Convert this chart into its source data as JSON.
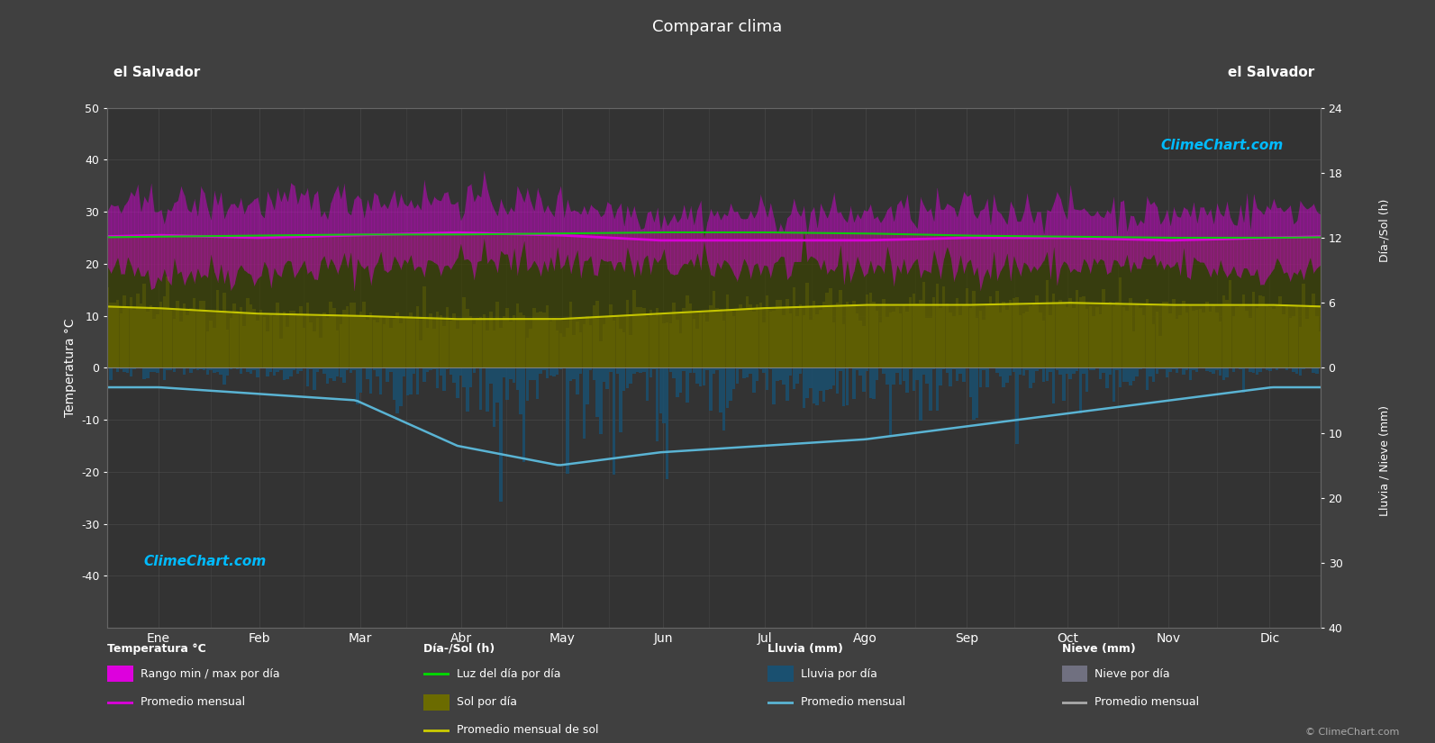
{
  "title": "Comparar clima",
  "left_label_top": "el Salvador",
  "right_label_top": "el Salvador",
  "ylabel_left": "Temperatura °C",
  "ylabel_right_top": "Día-/Sol (h)",
  "ylabel_right_bottom": "Lluvia / Nieve (mm)",
  "months": [
    "Ene",
    "Feb",
    "Mar",
    "Abr",
    "May",
    "Jun",
    "Jul",
    "Ago",
    "Sep",
    "Oct",
    "Nov",
    "Dic"
  ],
  "ylim_left": [
    -50,
    50
  ],
  "background_color": "#404040",
  "plot_bg_color": "#333333",
  "grid_color": "#555555",
  "temp_min_monthly": [
    19,
    19,
    20,
    21,
    21,
    20,
    20,
    20,
    20,
    20,
    20,
    19
  ],
  "temp_max_monthly": [
    31,
    31,
    32,
    32,
    31,
    29,
    29,
    29,
    30,
    30,
    29,
    30
  ],
  "temp_avg_monthly": [
    25.5,
    25.0,
    25.5,
    26.0,
    25.5,
    24.5,
    24.5,
    24.5,
    25.0,
    25.0,
    24.5,
    25.0
  ],
  "daylight_monthly": [
    12.1,
    12.2,
    12.3,
    12.3,
    12.4,
    12.5,
    12.5,
    12.4,
    12.2,
    12.1,
    12.0,
    12.0
  ],
  "sun_hours_monthly": [
    5.5,
    5.0,
    4.8,
    4.5,
    4.5,
    5.0,
    5.5,
    5.8,
    5.8,
    6.0,
    5.8,
    5.8
  ],
  "rain_avg_monthly": [
    3,
    4,
    5,
    12,
    15,
    13,
    12,
    11,
    9,
    7,
    5,
    3
  ],
  "temp_min_noise": 1.8,
  "temp_max_noise": 1.8,
  "magenta_color": "#dd00dd",
  "green_color": "#00dd00",
  "yellow_color": "#cccc00",
  "olive_color": "#6b6b00",
  "blue_fill_color": "#1a5070",
  "blue_line_color": "#5ab4d4",
  "rain_bar_color": "#1a5070",
  "snow_bar_color": "#707080",
  "logo_text": "ClimeChart.com",
  "copyright_text": "© ClimeChart.com",
  "right_ticks_top": [
    0,
    6,
    12,
    18,
    24
  ],
  "right_ticks_bottom": [
    0,
    10,
    20,
    30,
    40
  ]
}
